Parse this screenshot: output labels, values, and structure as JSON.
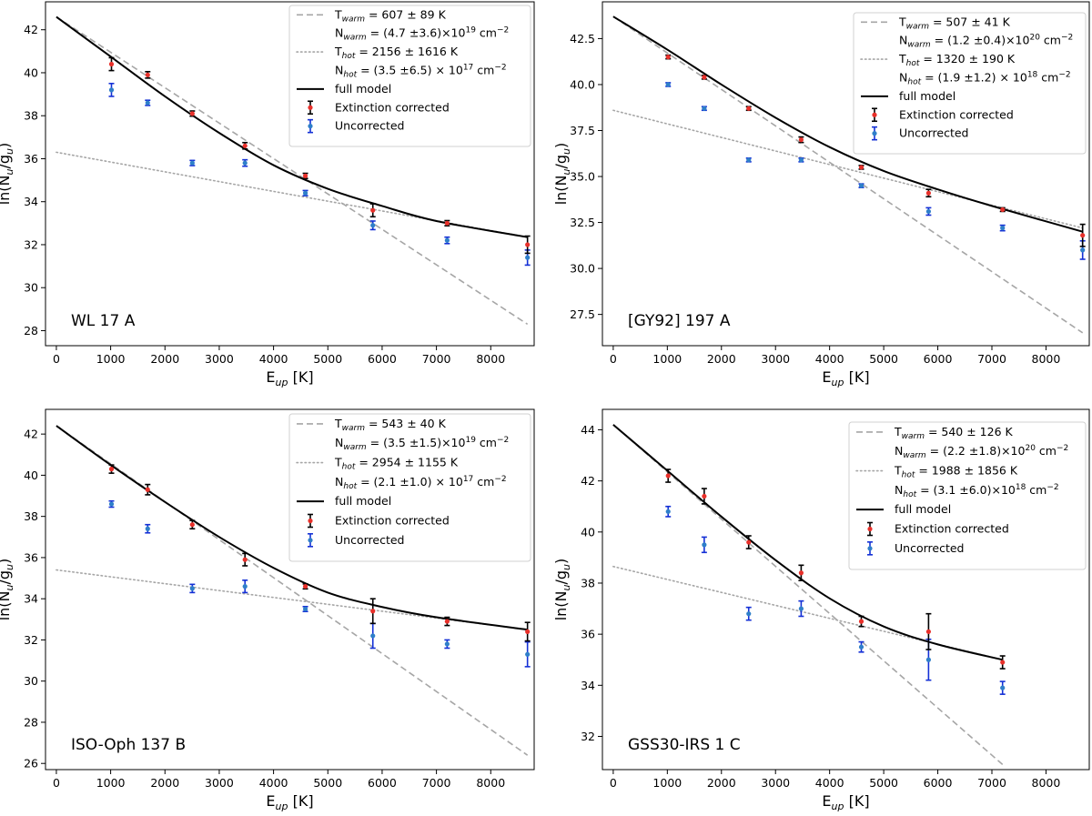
{
  "chart_data": [
    {
      "type": "scatter",
      "label": "WL 17 A",
      "xlabel": "E",
      "xlabel_sub": "up",
      "xlabel_unit": " [K]",
      "ylabel": "ln(N",
      "ylabel_sub1": "u",
      "ylabel_mid": "/g",
      "ylabel_sub2": "u",
      "ylabel_end": ")",
      "xlim": [
        -200,
        8800
      ],
      "ylim": [
        27.3,
        43.3
      ],
      "xticks": [
        0,
        1000,
        2000,
        3000,
        4000,
        5000,
        6000,
        7000,
        8000
      ],
      "xtick_labels": [
        "0",
        "1000",
        "2000",
        "3000",
        "4000",
        "5000",
        "6000",
        "7000",
        "8000"
      ],
      "yticks": [
        28,
        30,
        32,
        34,
        36,
        38,
        40,
        42
      ],
      "ytick_labels": [
        "28",
        "30",
        "32",
        "34",
        "36",
        "38",
        "40",
        "42"
      ],
      "x": [
        1015,
        1682,
        2504,
        3474,
        4586,
        5829,
        7197,
        8677
      ],
      "corrected": [
        40.4,
        39.9,
        38.1,
        36.6,
        35.2,
        33.6,
        33.0,
        32.0
      ],
      "corrected_err": [
        0.3,
        0.15,
        0.12,
        0.15,
        0.12,
        0.3,
        0.12,
        0.4
      ],
      "uncorrected": [
        39.2,
        38.6,
        35.8,
        35.8,
        34.4,
        32.9,
        32.2,
        31.4
      ],
      "uncorrected_err": [
        0.3,
        0.12,
        0.12,
        0.15,
        0.12,
        0.2,
        0.15,
        0.35
      ],
      "warm_line": [
        [
          0,
          42.6
        ],
        [
          8677,
          28.3
        ]
      ],
      "hot_line": [
        [
          0,
          36.3
        ],
        [
          8677,
          32.35
        ]
      ],
      "full_model": [
        [
          0,
          42.6
        ],
        [
          1000,
          40.75
        ],
        [
          2000,
          38.9
        ],
        [
          3000,
          37.2
        ],
        [
          4000,
          35.7
        ],
        [
          5000,
          34.6
        ],
        [
          6000,
          33.8
        ],
        [
          7000,
          33.1
        ],
        [
          8677,
          32.35
        ]
      ],
      "legend": {
        "warm_T_label": "T",
        "warm_T_sub": "warm",
        "warm_T_value": " = 607 ± 89 K",
        "warm_N_label": "N",
        "warm_N_sub": "warm",
        "warm_N_value": " = (4.7 ±3.6)×10",
        "warm_N_exp": "19",
        "warm_N_unit": " cm",
        "warm_N_unit_exp": "−2",
        "hot_T_label": "T",
        "hot_T_sub": "hot",
        "hot_T_value": " = 2156 ± 1616 K",
        "hot_N_label": "N",
        "hot_N_sub": "hot",
        "hot_N_value": " = (3.5 ±6.5) × 10",
        "hot_N_exp": "17",
        "hot_N_unit": " cm",
        "hot_N_unit_exp": "−2",
        "full_model": "full model",
        "corrected": "Extinction corrected",
        "uncorrected": "Uncorrected"
      }
    },
    {
      "type": "scatter",
      "label": "[GY92] 197 A",
      "xlabel": "E",
      "xlabel_sub": "up",
      "xlabel_unit": " [K]",
      "ylabel": "ln(N",
      "ylabel_sub1": "u",
      "ylabel_mid": "/g",
      "ylabel_sub2": "u",
      "ylabel_end": ")",
      "xlim": [
        -200,
        8800
      ],
      "ylim": [
        25.8,
        44.5
      ],
      "xticks": [
        0,
        1000,
        2000,
        3000,
        4000,
        5000,
        6000,
        7000,
        8000
      ],
      "xtick_labels": [
        "0",
        "1000",
        "2000",
        "3000",
        "4000",
        "5000",
        "6000",
        "7000",
        "8000"
      ],
      "yticks": [
        27.5,
        30.0,
        32.5,
        35.0,
        37.5,
        40.0,
        42.5
      ],
      "ytick_labels": [
        "27.5",
        "30.0",
        "32.5",
        "35.0",
        "37.5",
        "40.0",
        "42.5"
      ],
      "x": [
        1015,
        1682,
        2504,
        3474,
        4586,
        5829,
        7197,
        8677
      ],
      "corrected": [
        41.5,
        40.4,
        38.7,
        37.0,
        35.5,
        34.1,
        33.2,
        31.8
      ],
      "corrected_err": [
        0.1,
        0.1,
        0.1,
        0.15,
        0.1,
        0.2,
        0.1,
        0.6
      ],
      "uncorrected": [
        40.0,
        38.7,
        35.9,
        35.9,
        34.5,
        33.1,
        32.2,
        31.0
      ],
      "uncorrected_err": [
        0.1,
        0.1,
        0.1,
        0.1,
        0.1,
        0.2,
        0.15,
        0.5
      ],
      "warm_line": [
        [
          0,
          43.7
        ],
        [
          8677,
          26.5
        ]
      ],
      "hot_line": [
        [
          0,
          38.6
        ],
        [
          8677,
          32.2
        ]
      ],
      "full_model": [
        [
          0,
          43.7
        ],
        [
          1000,
          41.9
        ],
        [
          2000,
          40.0
        ],
        [
          3000,
          38.2
        ],
        [
          4000,
          36.6
        ],
        [
          5000,
          35.3
        ],
        [
          6000,
          34.3
        ],
        [
          7000,
          33.4
        ],
        [
          8677,
          32.0
        ]
      ],
      "legend": {
        "warm_T_label": "T",
        "warm_T_sub": "warm",
        "warm_T_value": " = 507 ± 41 K",
        "warm_N_label": "N",
        "warm_N_sub": "warm",
        "warm_N_value": " = (1.2 ±0.4)×10",
        "warm_N_exp": "20",
        "warm_N_unit": " cm",
        "warm_N_unit_exp": "−2",
        "hot_T_label": "T",
        "hot_T_sub": "hot",
        "hot_T_value": " = 1320 ± 190 K",
        "hot_N_label": "N",
        "hot_N_sub": "hot",
        "hot_N_value": " = (1.9 ±1.2) × 10",
        "hot_N_exp": "18",
        "hot_N_unit": " cm",
        "hot_N_unit_exp": "−2",
        "full_model": "full model",
        "corrected": "Extinction corrected",
        "uncorrected": "Uncorrected"
      }
    },
    {
      "type": "scatter",
      "label": "ISO-Oph 137 B",
      "xlabel": "E",
      "xlabel_sub": "up",
      "xlabel_unit": " [K]",
      "ylabel": "ln(N",
      "ylabel_sub1": "u",
      "ylabel_mid": "/g",
      "ylabel_sub2": "u",
      "ylabel_end": ")",
      "xlim": [
        -200,
        8800
      ],
      "ylim": [
        25.7,
        43.2
      ],
      "xticks": [
        0,
        1000,
        2000,
        3000,
        4000,
        5000,
        6000,
        7000,
        8000
      ],
      "xtick_labels": [
        "0",
        "1000",
        "2000",
        "3000",
        "4000",
        "5000",
        "6000",
        "7000",
        "8000"
      ],
      "yticks": [
        26,
        28,
        30,
        32,
        34,
        36,
        38,
        40,
        42
      ],
      "ytick_labels": [
        "26",
        "28",
        "30",
        "32",
        "34",
        "36",
        "38",
        "40",
        "42"
      ],
      "x": [
        1015,
        1682,
        2504,
        3474,
        4586,
        5829,
        7197,
        8677
      ],
      "corrected": [
        40.3,
        39.3,
        37.6,
        35.9,
        34.6,
        33.4,
        32.9,
        32.4
      ],
      "corrected_err": [
        0.2,
        0.25,
        0.2,
        0.3,
        0.12,
        0.6,
        0.2,
        0.45
      ],
      "uncorrected": [
        38.6,
        37.4,
        34.5,
        34.6,
        33.5,
        32.2,
        31.8,
        31.3
      ],
      "uncorrected_err": [
        0.15,
        0.2,
        0.2,
        0.3,
        0.12,
        0.6,
        0.2,
        0.6
      ],
      "warm_line": [
        [
          0,
          42.4
        ],
        [
          8677,
          26.4
        ]
      ],
      "hot_line": [
        [
          0,
          35.4
        ],
        [
          8677,
          32.5
        ]
      ],
      "full_model": [
        [
          0,
          42.4
        ],
        [
          1000,
          40.5
        ],
        [
          2000,
          38.7
        ],
        [
          3000,
          37.0
        ],
        [
          4000,
          35.5
        ],
        [
          5000,
          34.3
        ],
        [
          6000,
          33.6
        ],
        [
          7000,
          33.1
        ],
        [
          8677,
          32.5
        ]
      ],
      "legend": {
        "warm_T_label": "T",
        "warm_T_sub": "warm",
        "warm_T_value": " = 543 ± 40 K",
        "warm_N_label": "N",
        "warm_N_sub": "warm",
        "warm_N_value": " = (3.5 ±1.5)×10",
        "warm_N_exp": "19",
        "warm_N_unit": " cm",
        "warm_N_unit_exp": "−2",
        "hot_T_label": "T",
        "hot_T_sub": "hot",
        "hot_T_value": " = 2954 ± 1155 K",
        "hot_N_label": "N",
        "hot_N_sub": "hot",
        "hot_N_value": " = (2.1 ±1.0) × 10",
        "hot_N_exp": "17",
        "hot_N_unit": " cm",
        "hot_N_unit_exp": "−2",
        "full_model": "full model",
        "corrected": "Extinction corrected",
        "uncorrected": "Uncorrected"
      }
    },
    {
      "type": "scatter",
      "label": "GSS30-IRS 1 C",
      "xlabel": "E",
      "xlabel_sub": "up",
      "xlabel_unit": " [K]",
      "ylabel": "ln(N",
      "ylabel_sub1": "u",
      "ylabel_mid": "/g",
      "ylabel_sub2": "u",
      "ylabel_end": ")",
      "xlim": [
        -200,
        8800
      ],
      "ylim": [
        30.7,
        44.8
      ],
      "xticks": [
        0,
        1000,
        2000,
        3000,
        4000,
        5000,
        6000,
        7000,
        8000
      ],
      "xtick_labels": [
        "0",
        "1000",
        "2000",
        "3000",
        "4000",
        "5000",
        "6000",
        "7000",
        "8000"
      ],
      "yticks": [
        32,
        34,
        36,
        38,
        40,
        42,
        44
      ],
      "ytick_labels": [
        "32",
        "34",
        "36",
        "38",
        "40",
        "42",
        "44"
      ],
      "x": [
        1015,
        1682,
        2504,
        3474,
        4586,
        5829,
        7197
      ],
      "corrected": [
        42.2,
        41.4,
        39.6,
        38.4,
        36.5,
        36.1,
        34.9
      ],
      "corrected_err": [
        0.25,
        0.3,
        0.25,
        0.3,
        0.2,
        0.7,
        0.25
      ],
      "uncorrected": [
        40.8,
        39.5,
        36.8,
        37.0,
        35.5,
        35.0,
        33.9
      ],
      "uncorrected_err": [
        0.2,
        0.3,
        0.25,
        0.3,
        0.2,
        0.8,
        0.25
      ],
      "warm_line": [
        [
          0,
          44.2
        ],
        [
          7197,
          30.9
        ]
      ],
      "hot_line": [
        [
          0,
          38.65
        ],
        [
          7197,
          35.0
        ]
      ],
      "full_model": [
        [
          0,
          44.2
        ],
        [
          1000,
          42.4
        ],
        [
          2000,
          40.6
        ],
        [
          3000,
          38.9
        ],
        [
          4000,
          37.4
        ],
        [
          5000,
          36.3
        ],
        [
          6000,
          35.6
        ],
        [
          7197,
          35.0
        ]
      ],
      "legend": {
        "warm_T_label": "T",
        "warm_T_sub": "warm",
        "warm_T_value": " = 540 ± 126 K",
        "warm_N_label": "N",
        "warm_N_sub": "warm",
        "warm_N_value": " = (2.2 ±1.8)×10",
        "warm_N_exp": "20",
        "warm_N_unit": " cm",
        "warm_N_unit_exp": "−2",
        "hot_T_label": "T",
        "hot_T_sub": "hot",
        "hot_T_value": " = 1988 ± 1856 K",
        "hot_N_label": "N",
        "hot_N_sub": "hot",
        "hot_N_value": " = (3.1 ±6.0)×10",
        "hot_N_exp": "18",
        "hot_N_unit": " cm",
        "hot_N_unit_exp": "−2",
        "full_model": "full model",
        "corrected": "Extinction corrected",
        "uncorrected": "Uncorrected"
      }
    }
  ],
  "colors": {
    "corrected_marker": "#e8302a",
    "corrected_err": "#000000",
    "uncorrected_marker": "#2f7fc9",
    "uncorrected_err": "#1430d6",
    "warm_line": "#a6a6a6",
    "hot_line": "#a6a6a6",
    "full_model": "#000000"
  }
}
